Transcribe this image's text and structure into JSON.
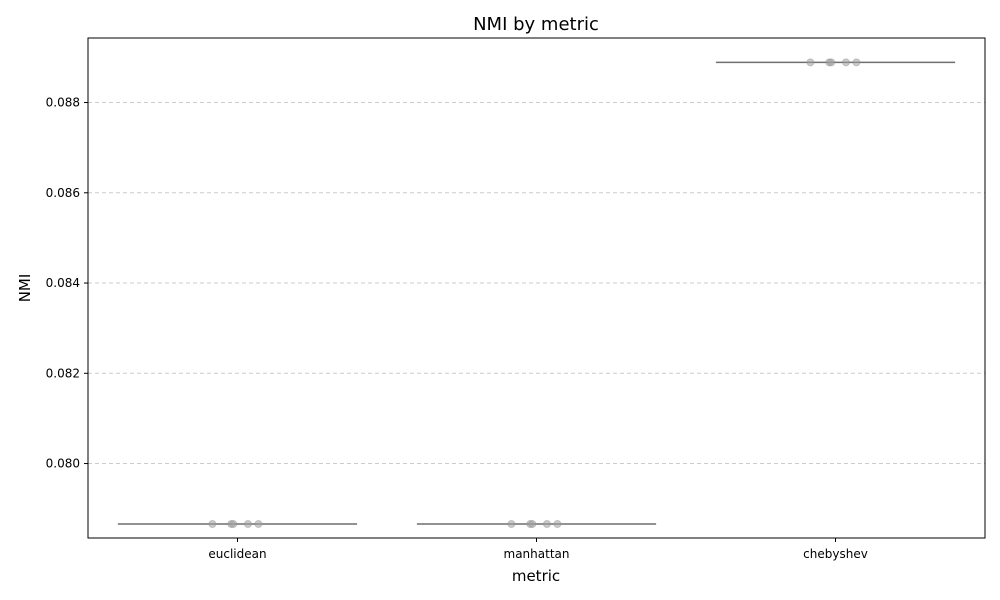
{
  "chart_data": {
    "type": "box",
    "title": "NMI by metric",
    "xlabel": "metric",
    "ylabel": "NMI",
    "categories": [
      "euclidean",
      "manhattan",
      "chebyshev"
    ],
    "ylim": [
      0.07835,
      0.08943
    ],
    "yticks": [
      0.08,
      0.082,
      0.084,
      0.086,
      0.088
    ],
    "ytick_labels": [
      "0.080",
      "0.082",
      "0.084",
      "0.086",
      "0.088"
    ],
    "grid": "y-dashed",
    "box_color": "#6f6f6f",
    "point_color": "#a0a0a0",
    "series": [
      {
        "values": [
          0.07866,
          0.07866,
          0.07866,
          0.07866,
          0.07866
        ],
        "median": 0.07866
      },
      {
        "values": [
          0.07866,
          0.07866,
          0.07866,
          0.07866,
          0.07866
        ],
        "median": 0.07866
      },
      {
        "values": [
          0.08889,
          0.08889,
          0.08889,
          0.08889,
          0.08889
        ],
        "median": 0.08889
      }
    ]
  }
}
